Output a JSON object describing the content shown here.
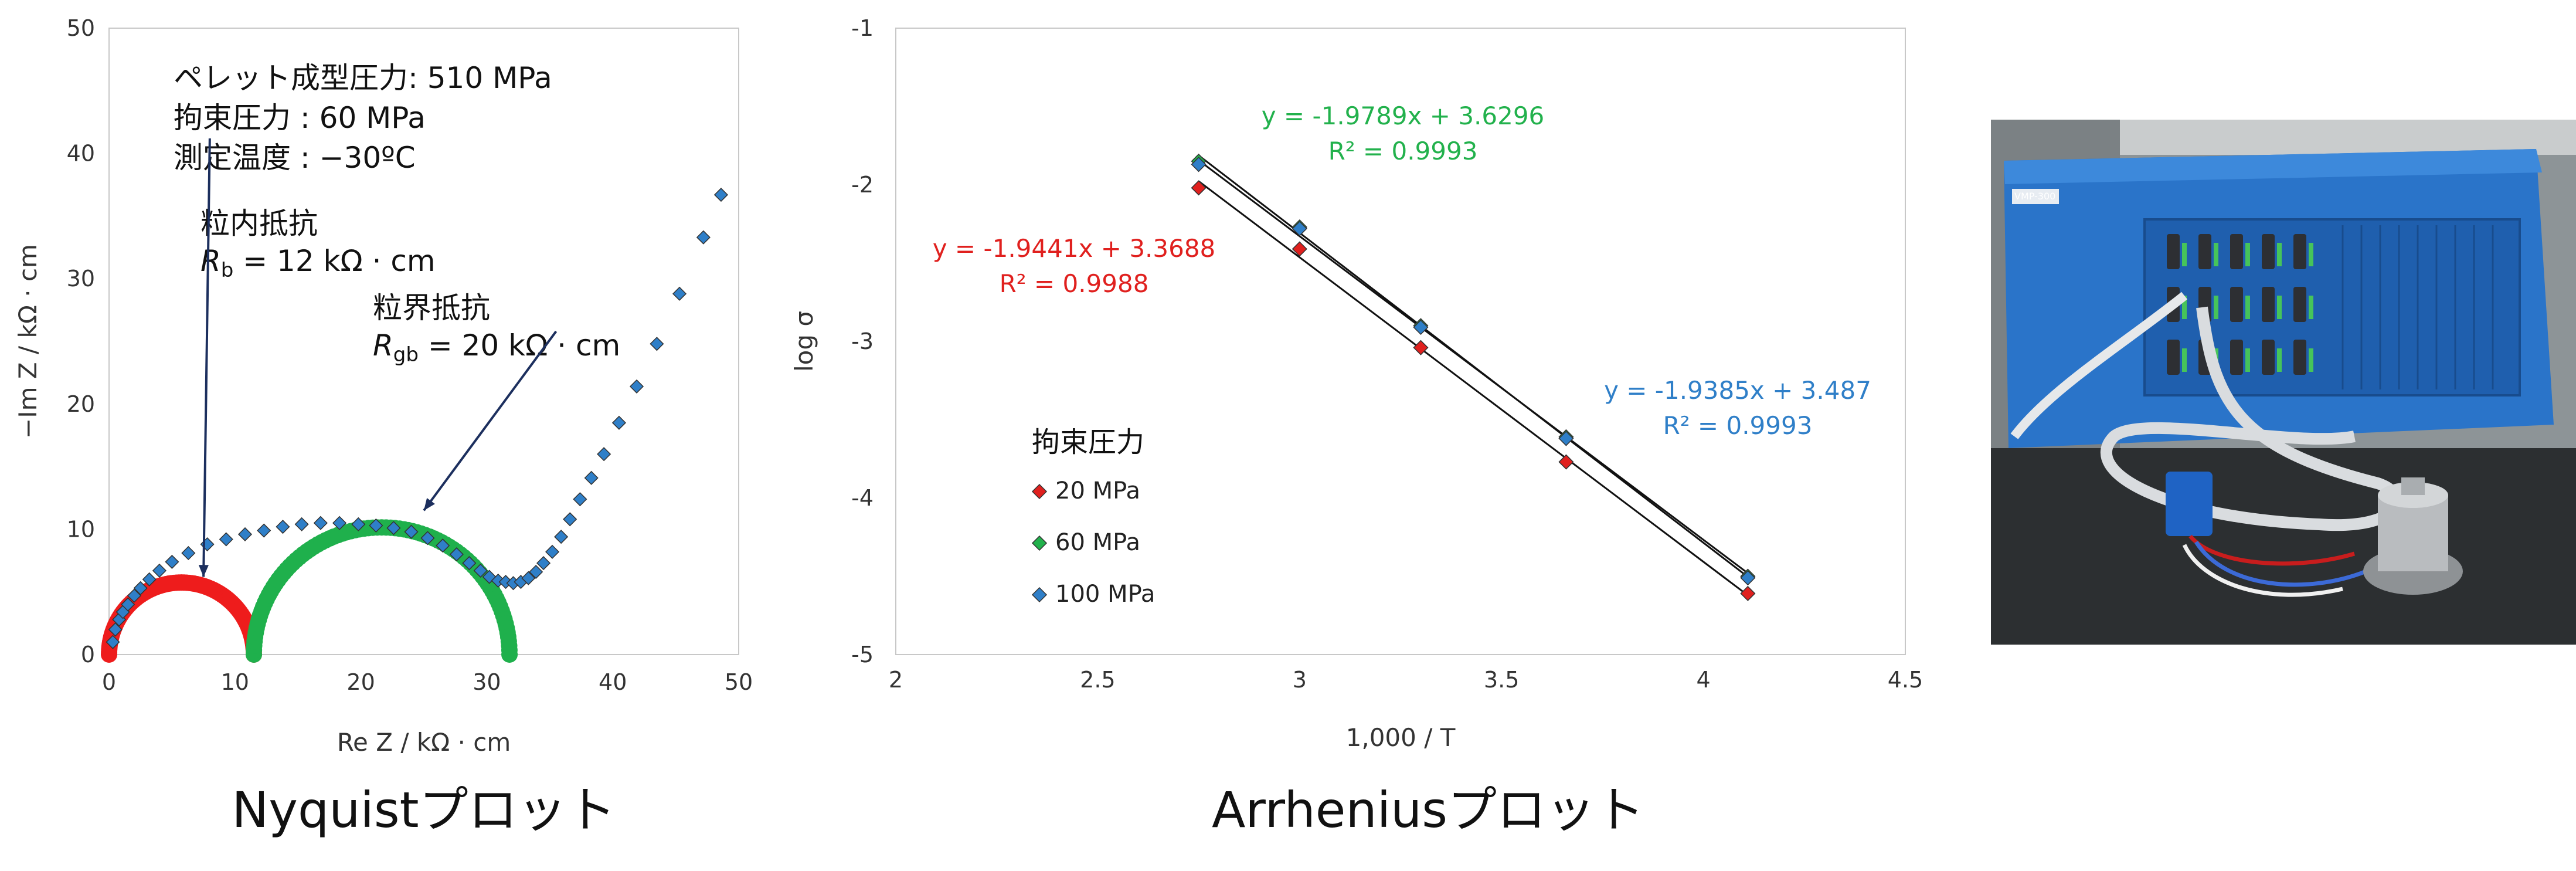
{
  "chart_data": [
    {
      "type": "scatter",
      "name": "nyquist",
      "caption": "Nyquistプロット",
      "xlabel": "Re Z / kΩ · cm",
      "ylabel": "−Im Z / kΩ · cm",
      "xlim": [
        0,
        50
      ],
      "ylim": [
        0,
        50
      ],
      "xticks": [
        "0",
        "10",
        "20",
        "30",
        "40",
        "50"
      ],
      "yticks": [
        "0",
        "10",
        "20",
        "30",
        "40",
        "50"
      ],
      "conditions": [
        "ペレット成型圧力: 510 MPa",
        "拘束圧力 : 60 MPa",
        "測定温度 : −30ºC"
      ],
      "annotations": [
        {
          "title": "粒内抵抗",
          "symbol": "R",
          "sub": "b",
          "value": " = 12 kΩ · cm",
          "arrow_to": [
            7.5,
            6.2
          ]
        },
        {
          "title": "粒界抵抗",
          "symbol": "R",
          "sub": "gb",
          "value": " = 20 kΩ · cm",
          "arrow_to": [
            25,
            11.5
          ]
        }
      ],
      "arcs": [
        {
          "name": "粒内抵抗",
          "color": "#ee1c1c",
          "x_start": 0,
          "x_end": 11.5
        },
        {
          "name": "粒界抵抗",
          "color": "#1fb04c",
          "x_start": 11.5,
          "x_end": 31.8
        }
      ],
      "measured_color": "#2f7fc8",
      "measured": [
        [
          0.3,
          1.0
        ],
        [
          0.5,
          2.0
        ],
        [
          0.8,
          2.8
        ],
        [
          1.1,
          3.4
        ],
        [
          1.5,
          4.0
        ],
        [
          2.0,
          4.7
        ],
        [
          2.5,
          5.3
        ],
        [
          3.2,
          6.0
        ],
        [
          4.0,
          6.7
        ],
        [
          5.0,
          7.4
        ],
        [
          6.3,
          8.1
        ],
        [
          7.8,
          8.8
        ],
        [
          9.3,
          9.2
        ],
        [
          10.8,
          9.6
        ],
        [
          12.3,
          9.9
        ],
        [
          13.8,
          10.2
        ],
        [
          15.3,
          10.4
        ],
        [
          16.8,
          10.5
        ],
        [
          18.3,
          10.5
        ],
        [
          19.8,
          10.4
        ],
        [
          21.2,
          10.3
        ],
        [
          22.6,
          10.1
        ],
        [
          24.0,
          9.8
        ],
        [
          25.3,
          9.3
        ],
        [
          26.5,
          8.7
        ],
        [
          27.6,
          8.0
        ],
        [
          28.6,
          7.3
        ],
        [
          29.5,
          6.7
        ],
        [
          30.2,
          6.2
        ],
        [
          30.9,
          5.9
        ],
        [
          31.5,
          5.8
        ],
        [
          32.1,
          5.7
        ],
        [
          32.7,
          5.8
        ],
        [
          33.3,
          6.1
        ],
        [
          33.9,
          6.6
        ],
        [
          34.5,
          7.3
        ],
        [
          35.2,
          8.2
        ],
        [
          35.9,
          9.4
        ],
        [
          36.6,
          10.8
        ],
        [
          37.4,
          12.4
        ],
        [
          38.3,
          14.1
        ],
        [
          39.3,
          16.0
        ],
        [
          40.5,
          18.5
        ],
        [
          41.9,
          21.4
        ],
        [
          43.5,
          24.8
        ],
        [
          45.3,
          28.8
        ],
        [
          47.2,
          33.3
        ],
        [
          48.6,
          36.7
        ]
      ]
    },
    {
      "type": "scatter",
      "name": "arrhenius",
      "caption": "Arrheniusプロット",
      "xlabel": "1,000 / T",
      "ylabel": "log σ",
      "xlim": [
        2,
        4.5
      ],
      "ylim": [
        -5,
        -1
      ],
      "xticks": [
        "2",
        "2.5",
        "3",
        "3.5",
        "4",
        "4.5"
      ],
      "yticks": [
        "-1",
        "-2",
        "-3",
        "-4",
        "-5"
      ],
      "legend_title": "拘束圧力",
      "series": [
        {
          "name": "20 MPa",
          "color": "#e0201e",
          "x": [
            2.75,
            3.0,
            3.3,
            3.66,
            4.11
          ],
          "y": [
            -2.02,
            -2.41,
            -3.04,
            -3.77,
            -4.61
          ],
          "fit": {
            "slope": -1.9441,
            "intercept": 3.3688
          },
          "equation": "y = -1.9441x + 3.3688",
          "r2": "R² = 0.9988"
        },
        {
          "name": "60 MPa",
          "color": "#22b14c",
          "x": [
            2.75,
            3.0,
            3.3,
            3.66,
            4.11
          ],
          "y": [
            -1.85,
            -2.27,
            -2.9,
            -3.61,
            -4.5
          ],
          "fit": {
            "slope": -1.9789,
            "intercept": 3.6296
          },
          "equation": "y = -1.9789x + 3.6296",
          "r2": "R² = 0.9993"
        },
        {
          "name": "100 MPa",
          "color": "#2f7fc8",
          "x": [
            2.75,
            3.0,
            3.3,
            3.66,
            4.11
          ],
          "y": [
            -1.87,
            -2.28,
            -2.91,
            -3.62,
            -4.51
          ],
          "fit": {
            "slope": -1.9385,
            "intercept": 3.487
          },
          "equation": "y = -1.9385x + 3.487",
          "r2": "R² = 0.9993"
        }
      ]
    }
  ],
  "photo": {
    "description_label": "VMP-300",
    "colors": {
      "instrument": "#2a74c9",
      "panel": "#1f5fae",
      "background": "#9aa0a3",
      "cell": "#b9bcbf"
    }
  }
}
